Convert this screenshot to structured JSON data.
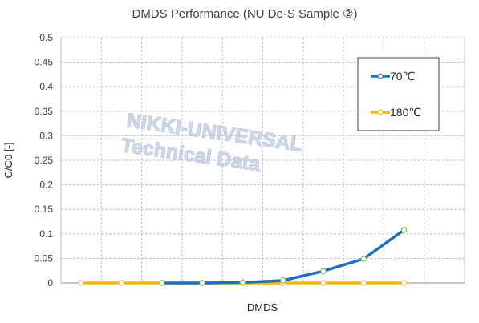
{
  "chart_data": {
    "type": "line",
    "title": "DMDS Performance (NU De-S Sample ②)",
    "xlabel": "DMDS",
    "ylabel": "C/C0 [-]",
    "ylim": [
      0,
      0.5
    ],
    "yticks": [
      "0",
      "0.05",
      "0.1",
      "0.15",
      "0.2",
      "0.25",
      "0.3",
      "0.35",
      "0.4",
      "0.45",
      "0.5"
    ],
    "x": [
      1,
      2,
      3,
      4,
      5,
      6,
      7,
      8,
      9,
      10
    ],
    "grid": true,
    "legend_position": "top-right",
    "series": [
      {
        "name": "70℃",
        "color": "#1f6fbf",
        "values": [
          null,
          null,
          0,
          0,
          0.001,
          0.005,
          0.024,
          0.049,
          0.108,
          null
        ]
      },
      {
        "name": "180℃",
        "color": "#f2b705",
        "values": [
          0,
          0,
          0,
          0,
          0,
          0,
          0,
          0,
          0,
          null
        ]
      }
    ]
  },
  "watermark": {
    "line1": "NIKKI-UNIVERSAL",
    "line2": "Technical Data"
  }
}
